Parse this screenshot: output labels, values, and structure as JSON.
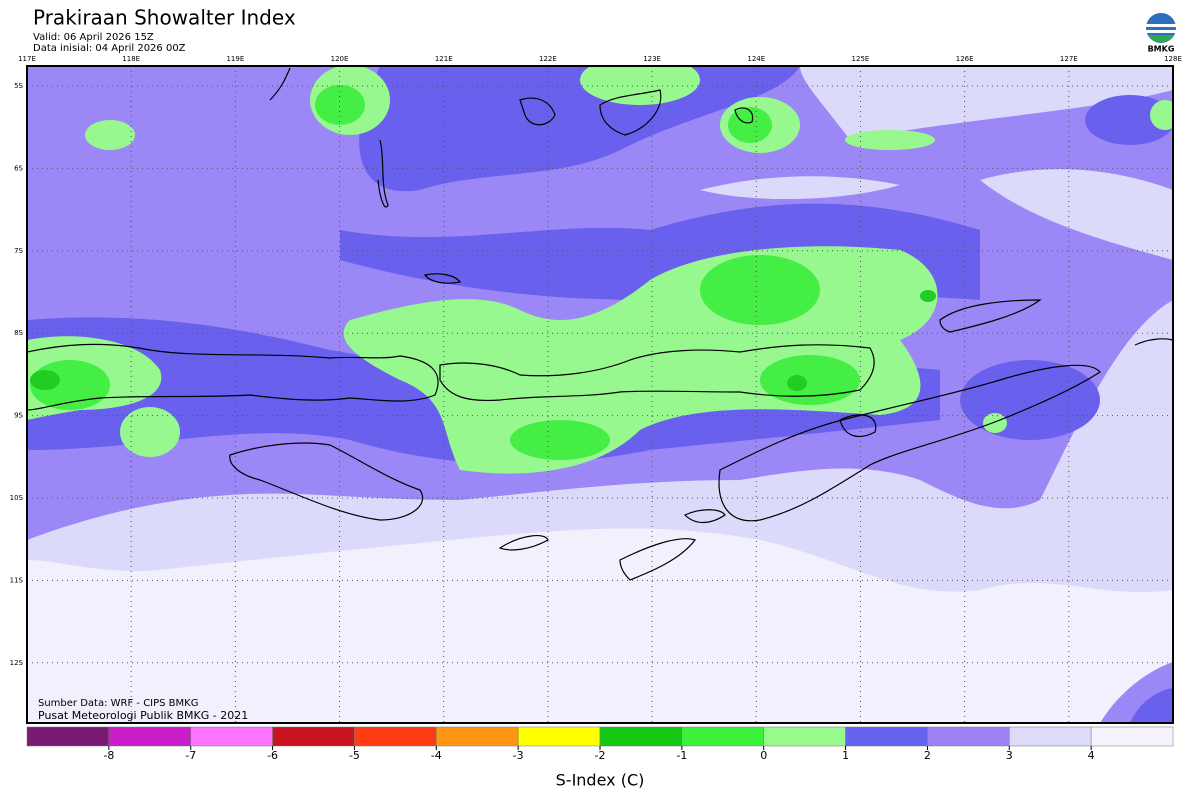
{
  "header": {
    "title": "Prakiraan Showalter Index",
    "valid": "Valid: 06 April 2026 15Z",
    "init": "Data inisial: 04 April 2026 00Z",
    "logo": "BMKG"
  },
  "map": {
    "lon_labels": [
      "117E",
      "118E",
      "119E",
      "120E",
      "121E",
      "122E",
      "123E",
      "124E",
      "125E",
      "126E",
      "127E",
      "128E"
    ],
    "lat_labels": [
      "5S",
      "6S",
      "7S",
      "8S",
      "9S",
      "10S",
      "11S",
      "12S"
    ],
    "source": "Sumber Data: WRF - CIPS BMKG",
    "credit": "Pusat Meteorologi Publik BMKG - 2021"
  },
  "colorbar": {
    "title": "S-Index (C)",
    "colors": [
      "#7a1a75",
      "#c81fc8",
      "#ff73ff",
      "#c8141e",
      "#ff3c14",
      "#ff9614",
      "#ffff00",
      "#14c814",
      "#3cf03c",
      "#96fa8c",
      "#6464f0",
      "#9b82f5",
      "#dcdcfa",
      "#f5f2fd"
    ],
    "ticks": [
      -8,
      -7,
      -6,
      -5,
      -4,
      -3,
      -2,
      -1,
      0,
      1,
      2,
      3,
      4
    ]
  }
}
